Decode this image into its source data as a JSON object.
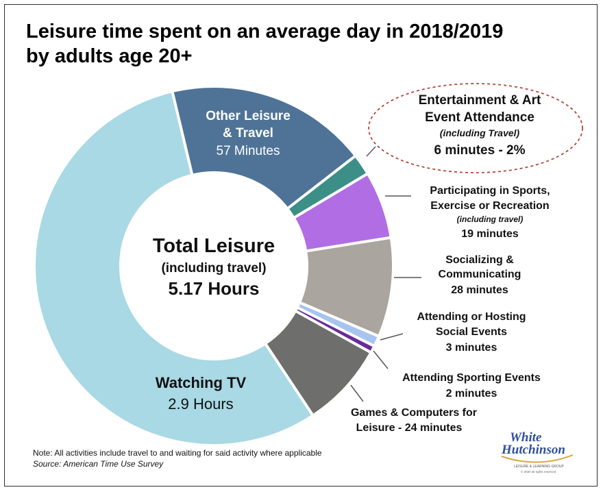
{
  "title_line1": "Leisure time spent on an average day in 2018/2019",
  "title_line2": "by adults age 20+",
  "center": {
    "line1": "Total Leisure",
    "line2": "(including travel)",
    "line3": "5.17 Hours"
  },
  "labels": {
    "other": {
      "line1": "Other Leisure",
      "line2": "& Travel",
      "line3": "57 Minutes"
    },
    "ent": {
      "line1": "Entertainment & Art",
      "line2": "Event Attendance",
      "line3": "(including Travel)",
      "line4": "6 minutes - 2%"
    },
    "sports": {
      "line1": "Participating in Sports,",
      "line2": "Exercise or Recreation",
      "line3": "(including travel)",
      "line4": "19 minutes"
    },
    "social": {
      "line1": "Socializing &",
      "line2": "Communicating",
      "line3": "28 minutes"
    },
    "hosting": {
      "line1": "Attending or Hosting",
      "line2": "Social Events",
      "line3": "3 minutes"
    },
    "sporting": {
      "line1": "Attending Sporting Events",
      "line2": "2 minutes"
    },
    "games": {
      "line1": "Games & Computers for",
      "line2": "Leisure - 24 minutes"
    },
    "tv": {
      "line1": "Watching TV",
      "line2": "2.9 Hours"
    }
  },
  "note": {
    "line1": "Note: All activities include travel to and waiting for said activity where applicable",
    "line2": "Source: American Time Use Survey"
  },
  "logo": {
    "line1": "White",
    "line2": "Hutchinson",
    "tagline": "LEISURE & LEARNING GROUP",
    "copyright": "© 2020 all rights reserved"
  },
  "chart_data": {
    "type": "pie",
    "unit": "minutes",
    "slices": [
      {
        "label": "Other Leisure & Travel",
        "value": 57,
        "color": "#4f7397"
      },
      {
        "label": "Entertainment & Art Event Attendance",
        "value": 6,
        "color": "#3c8f86"
      },
      {
        "label": "Participating in Sports, Exercise or Recreation",
        "value": 19,
        "color": "#b16ee4"
      },
      {
        "label": "Socializing & Communicating",
        "value": 28,
        "color": "#aaa59e"
      },
      {
        "label": "Attending or Hosting Social Events",
        "value": 3,
        "color": "#a7c4f0"
      },
      {
        "label": "Attending Sporting Events",
        "value": 2,
        "color": "#6a2a9a"
      },
      {
        "label": "Games & Computers for Leisure",
        "value": 24,
        "color": "#6e6e6c"
      },
      {
        "label": "Watching TV",
        "value": 174,
        "color": "#a8d9e4"
      }
    ],
    "total_hours": 5.17
  }
}
